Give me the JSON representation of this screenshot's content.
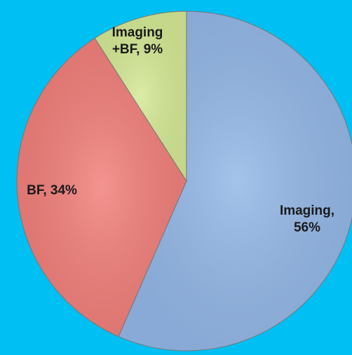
{
  "chart_data": {
    "type": "pie",
    "categories": [
      "Imaging",
      "BF",
      "Imaging +BF"
    ],
    "values": [
      56,
      34,
      9
    ],
    "value_labels": [
      "Imaging,\n56%",
      "BF, 34%",
      "Imaging\n+BF, 9%"
    ],
    "colors": [
      "#95b9e8",
      "#f2817c",
      "#d5ea96"
    ]
  }
}
